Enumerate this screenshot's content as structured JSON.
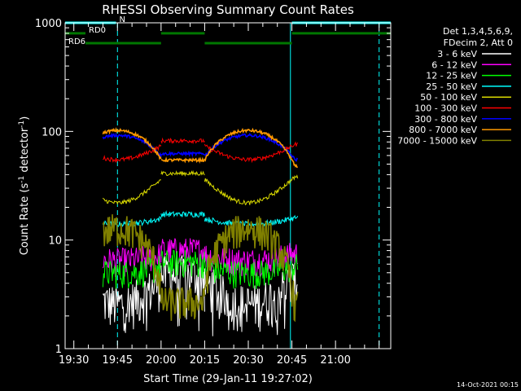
{
  "chart_data": {
    "type": "line",
    "title": "RHESSI Observing Summary Count Rates",
    "xlabel": "Start Time (29-Jan-11 19:27:02)",
    "ylabel_main": "Count Rate (s",
    "ylabel_sup1": "-1",
    "ylabel_mid": " detector",
    "ylabel_sup2": "-1",
    "ylabel_end": ")",
    "xaxis_unit": "minutes after 19:27:02",
    "xlim": [
      0,
      112
    ],
    "ylim": [
      1,
      1000
    ],
    "yscale": "log",
    "x_ticks": [
      {
        "label": "19:30",
        "value": 3
      },
      {
        "label": "19:45",
        "value": 18
      },
      {
        "label": "20:00",
        "value": 33
      },
      {
        "label": "20:15",
        "value": 48
      },
      {
        "label": "20:30",
        "value": 63
      },
      {
        "label": "20:45",
        "value": 78
      },
      {
        "label": "21:00",
        "value": 93
      }
    ],
    "y_ticks": [
      {
        "label": "1",
        "value": 1
      },
      {
        "label": "10",
        "value": 10
      },
      {
        "label": "100",
        "value": 100
      },
      {
        "label": "1000",
        "value": 1000
      }
    ],
    "legend_position": "right",
    "legend_header": [
      "Det 1,3,4,5,6,9,",
      "FDecim 2, Att 0"
    ],
    "series": [
      {
        "name": "3 - 6 keV",
        "color": "#ffffff",
        "arc": [
          2.6,
          4.5
        ],
        "amp": 0.08
      },
      {
        "name": "6 - 12 keV",
        "color": "#ff00ff",
        "arc": [
          6.5,
          7.5
        ],
        "amp": 0.05
      },
      {
        "name": "12 - 25 keV",
        "color": "#00ff00",
        "arc": [
          5.0,
          5.8
        ],
        "amp": 0.05
      },
      {
        "name": "25 - 50 keV",
        "color": "#00ffff",
        "arc": [
          14,
          16
        ],
        "amp": 0.04
      },
      {
        "name": "50 - 100 keV",
        "color": "#d8d800",
        "arc": [
          22,
          38
        ],
        "amp": 0.03
      },
      {
        "name": "100 - 300 keV",
        "color": "#ff0000",
        "arc": [
          55,
          76
        ],
        "amp": 0.03
      },
      {
        "name": "300 - 800 keV",
        "color": "#0000ff",
        "arc": [
          92,
          55
        ],
        "amp": 0.02
      },
      {
        "name": "800 - 7000 keV",
        "color": "#ff9900",
        "arc": [
          102,
          48
        ],
        "amp": 0.02
      },
      {
        "name": "7000 - 15000 keV",
        "color": "#808000",
        "arc": [
          13,
          2.5
        ],
        "amp": 0.06
      }
    ],
    "segments": [
      [
        13,
        33
      ],
      [
        33,
        48
      ],
      [
        48,
        77.5
      ],
      [
        77.5,
        80
      ]
    ],
    "flag_bars": [
      {
        "label": "N",
        "color": "#00ffff",
        "y": 1000,
        "ranges": [
          [
            0,
            17.5
          ],
          [
            78,
            112
          ]
        ]
      },
      {
        "label": "RD0",
        "color": "#007700",
        "y": 800,
        "ranges": [
          [
            0,
            7
          ],
          [
            33,
            48
          ],
          [
            78,
            112
          ]
        ]
      },
      {
        "label": "RD6",
        "color": "#007700",
        "y": 650,
        "ranges": [
          [
            7,
            33
          ],
          [
            48,
            78
          ]
        ]
      }
    ],
    "vlines": [
      {
        "x": 0,
        "color": "#00ffff",
        "style": "solid"
      },
      {
        "x": 18,
        "color": "#00ffff",
        "style": "dashed"
      },
      {
        "x": 77.5,
        "color": "#00ffff",
        "style": "solid"
      },
      {
        "x": 108,
        "color": "#00ffff",
        "style": "dashed"
      }
    ]
  },
  "timestamp": "14-Oct-2021 00:15"
}
